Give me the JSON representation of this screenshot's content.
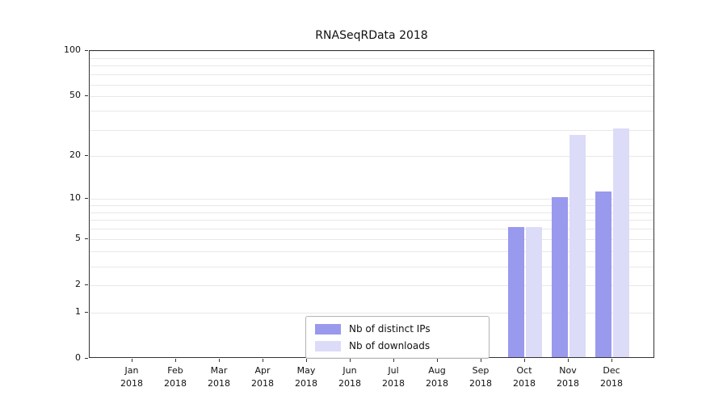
{
  "title": "RNASeqRData 2018",
  "chart_data": {
    "type": "bar",
    "title": "RNASeqRData 2018",
    "categories": [
      "Jan 2018",
      "Feb 2018",
      "Mar 2018",
      "Apr 2018",
      "May 2018",
      "Jun 2018",
      "Jul 2018",
      "Aug 2018",
      "Sep 2018",
      "Oct 2018",
      "Nov 2018",
      "Dec 2018"
    ],
    "series": [
      {
        "name": "Nb of distinct IPs",
        "color": "#9999ee",
        "values": [
          0,
          0,
          0,
          0,
          0,
          0,
          0,
          0,
          0,
          6,
          10,
          11
        ]
      },
      {
        "name": "Nb of downloads",
        "color": "#dcdcf8",
        "values": [
          0,
          0,
          0,
          0,
          0,
          0,
          0,
          0,
          0,
          6,
          27,
          30
        ]
      }
    ],
    "xlabel": "",
    "ylabel": "",
    "yscale": "log1p",
    "ylim": [
      0,
      100
    ],
    "yticks": [
      100,
      50,
      20,
      10,
      5,
      2,
      1,
      0
    ],
    "grid_values": [
      1,
      2,
      3,
      4,
      5,
      6,
      7,
      8,
      9,
      10,
      20,
      30,
      40,
      50,
      60,
      70,
      80,
      90,
      100
    ],
    "grid": true,
    "legend_position": "bottom-center",
    "axis_color": "#333333",
    "grid_color": "#e8e8e8"
  }
}
